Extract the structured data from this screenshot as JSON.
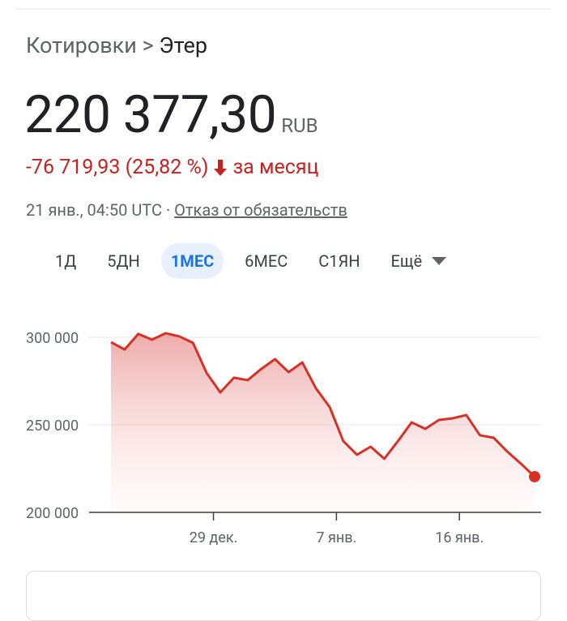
{
  "breadcrumb": {
    "parent": "Котировки",
    "separator": ">",
    "current": "Этер"
  },
  "price": {
    "value": "220 377,30",
    "currency": "RUB"
  },
  "change": {
    "text": "-76 719,93 (25,82 %)",
    "period": "за месяц"
  },
  "timestamp": "21 янв., 04:50 UTC",
  "timestamp_separator": "·",
  "disclaimer": "Отказ от обязательств",
  "ranges": [
    "1Д",
    "5ДН",
    "1МЕС",
    "6МЕС",
    "С1ЯН",
    "Ещё"
  ],
  "selected_range": 2,
  "chart_data": {
    "type": "line",
    "color": "#d93025",
    "grid": true,
    "x": [
      0,
      1,
      2,
      3,
      4,
      5,
      6,
      7,
      8,
      9,
      10,
      11,
      12,
      13,
      14,
      15,
      16,
      17,
      18,
      19,
      20,
      21,
      22,
      23,
      24,
      25,
      26,
      27,
      28,
      29,
      30,
      31
    ],
    "values": [
      297200,
      293000,
      301900,
      298600,
      302300,
      300500,
      296800,
      279600,
      268500,
      276900,
      275500,
      281900,
      287500,
      280100,
      285600,
      270800,
      260200,
      240700,
      232900,
      237500,
      230600,
      240700,
      251400,
      247700,
      252800,
      253700,
      255600,
      244000,
      242600,
      234700,
      227800,
      220377.3
    ],
    "xlim": [
      0,
      31
    ],
    "xticks": [
      {
        "value": 7.5,
        "label": "29 дек."
      },
      {
        "value": 16.5,
        "label": "7 янв."
      },
      {
        "value": 25.5,
        "label": "16 янв."
      }
    ],
    "ylim": [
      200000,
      310000
    ],
    "yticks": [
      {
        "value": 200000,
        "label": "200 000"
      },
      {
        "value": 250000,
        "label": "250 000"
      },
      {
        "value": 300000,
        "label": "300 000"
      }
    ]
  }
}
